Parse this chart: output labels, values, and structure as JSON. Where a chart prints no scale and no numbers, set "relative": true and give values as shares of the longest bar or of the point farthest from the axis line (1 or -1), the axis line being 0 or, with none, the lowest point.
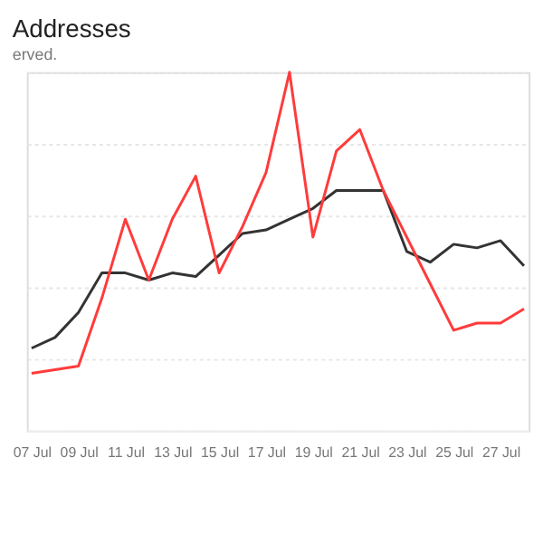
{
  "chart_data": {
    "type": "line",
    "title": "Addresses",
    "relative": true,
    "grid": "y",
    "categories": [
      "07 Jul",
      null,
      "09 Jul",
      null,
      "11 Jul",
      null,
      "13 Jul",
      null,
      "15 Jul",
      null,
      "17 Jul",
      null,
      "19 Jul",
      null,
      "21 Jul",
      null,
      "23 Jul",
      null,
      "25 Jul",
      null,
      "27 Jul",
      null
    ],
    "series": [
      {
        "color": "#333333",
        "values": [
          0.23,
          0.26,
          0.33,
          0.44,
          0.44,
          0.42,
          0.44,
          0.43,
          0.49,
          0.55,
          0.56,
          0.59,
          0.62,
          0.67,
          0.67,
          0.67,
          0.5,
          0.47,
          0.52,
          0.51,
          0.53,
          0.46
        ]
      },
      {
        "color": "#ff3b3b",
        "values": [
          0.16,
          0.17,
          0.18,
          0.37,
          0.59,
          0.42,
          0.59,
          0.71,
          0.44,
          0.57,
          0.72,
          1,
          0.54,
          0.78,
          0.84,
          0.67,
          0.54,
          0.41,
          0.28,
          0.3,
          0.3,
          0.34
        ]
      }
    ],
    "annotations": [
      "erved."
    ]
  }
}
